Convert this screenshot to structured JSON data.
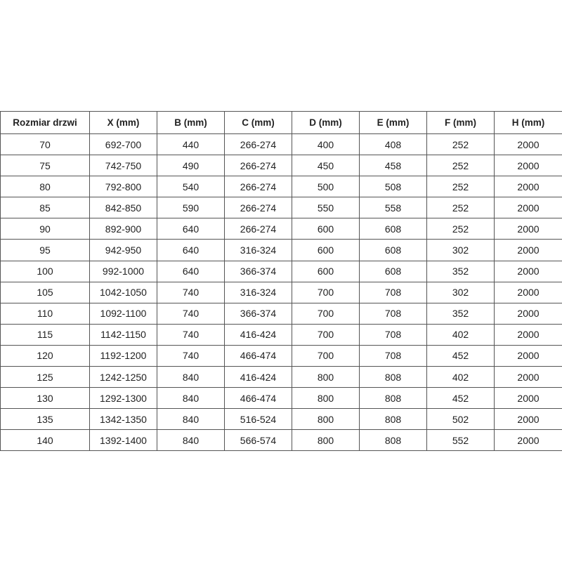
{
  "table": {
    "headers": [
      "Rozmiar drzwi",
      "X (mm)",
      "B (mm)",
      "C (mm)",
      "D (mm)",
      "E (mm)",
      "F (mm)",
      "H (mm)"
    ],
    "rows": [
      [
        "70",
        "692-700",
        "440",
        "266-274",
        "400",
        "408",
        "252",
        "2000"
      ],
      [
        "75",
        "742-750",
        "490",
        "266-274",
        "450",
        "458",
        "252",
        "2000"
      ],
      [
        "80",
        "792-800",
        "540",
        "266-274",
        "500",
        "508",
        "252",
        "2000"
      ],
      [
        "85",
        "842-850",
        "590",
        "266-274",
        "550",
        "558",
        "252",
        "2000"
      ],
      [
        "90",
        "892-900",
        "640",
        "266-274",
        "600",
        "608",
        "252",
        "2000"
      ],
      [
        "95",
        "942-950",
        "640",
        "316-324",
        "600",
        "608",
        "302",
        "2000"
      ],
      [
        "100",
        "992-1000",
        "640",
        "366-374",
        "600",
        "608",
        "352",
        "2000"
      ],
      [
        "105",
        "1042-1050",
        "740",
        "316-324",
        "700",
        "708",
        "302",
        "2000"
      ],
      [
        "110",
        "1092-1100",
        "740",
        "366-374",
        "700",
        "708",
        "352",
        "2000"
      ],
      [
        "115",
        "1142-1150",
        "740",
        "416-424",
        "700",
        "708",
        "402",
        "2000"
      ],
      [
        "120",
        "1192-1200",
        "740",
        "466-474",
        "700",
        "708",
        "452",
        "2000"
      ],
      [
        "125",
        "1242-1250",
        "840",
        "416-424",
        "800",
        "808",
        "402",
        "2000"
      ],
      [
        "130",
        "1292-1300",
        "840",
        "466-474",
        "800",
        "808",
        "452",
        "2000"
      ],
      [
        "135",
        "1342-1350",
        "840",
        "516-524",
        "800",
        "808",
        "502",
        "2000"
      ],
      [
        "140",
        "1392-1400",
        "840",
        "566-574",
        "800",
        "808",
        "552",
        "2000"
      ]
    ]
  }
}
